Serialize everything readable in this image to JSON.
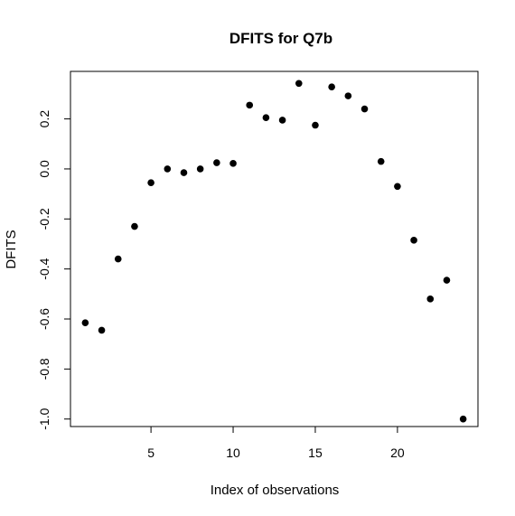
{
  "chart_data": {
    "type": "scatter",
    "title": "DFITS for Q7b",
    "xlabel": "Index of observations",
    "ylabel": "DFITS",
    "xlim": [
      0.1,
      24.9
    ],
    "ylim": [
      -1.03,
      0.39
    ],
    "x_ticks": [
      5,
      10,
      15,
      20
    ],
    "x_tick_labels": [
      "5",
      "10",
      "15",
      "20"
    ],
    "y_ticks": [
      -1.0,
      -0.8,
      -0.6,
      -0.4,
      -0.2,
      0.0,
      0.2
    ],
    "y_tick_labels": [
      "-1.0",
      "-0.8",
      "-0.6",
      "-0.4",
      "-0.2",
      "0.0",
      "0.2"
    ],
    "grid": false,
    "point_color": "#000000",
    "x": [
      1,
      2,
      3,
      4,
      5,
      6,
      7,
      8,
      9,
      10,
      11,
      12,
      13,
      14,
      15,
      16,
      17,
      18,
      19,
      20,
      21,
      22,
      23,
      24
    ],
    "y": [
      -0.615,
      -0.645,
      -0.36,
      -0.23,
      -0.055,
      0.0,
      -0.015,
      0.0,
      0.025,
      0.022,
      0.255,
      0.205,
      0.195,
      0.342,
      0.175,
      0.328,
      0.292,
      0.24,
      0.03,
      -0.07,
      -0.285,
      -0.52,
      -0.445,
      -1.0
    ]
  }
}
